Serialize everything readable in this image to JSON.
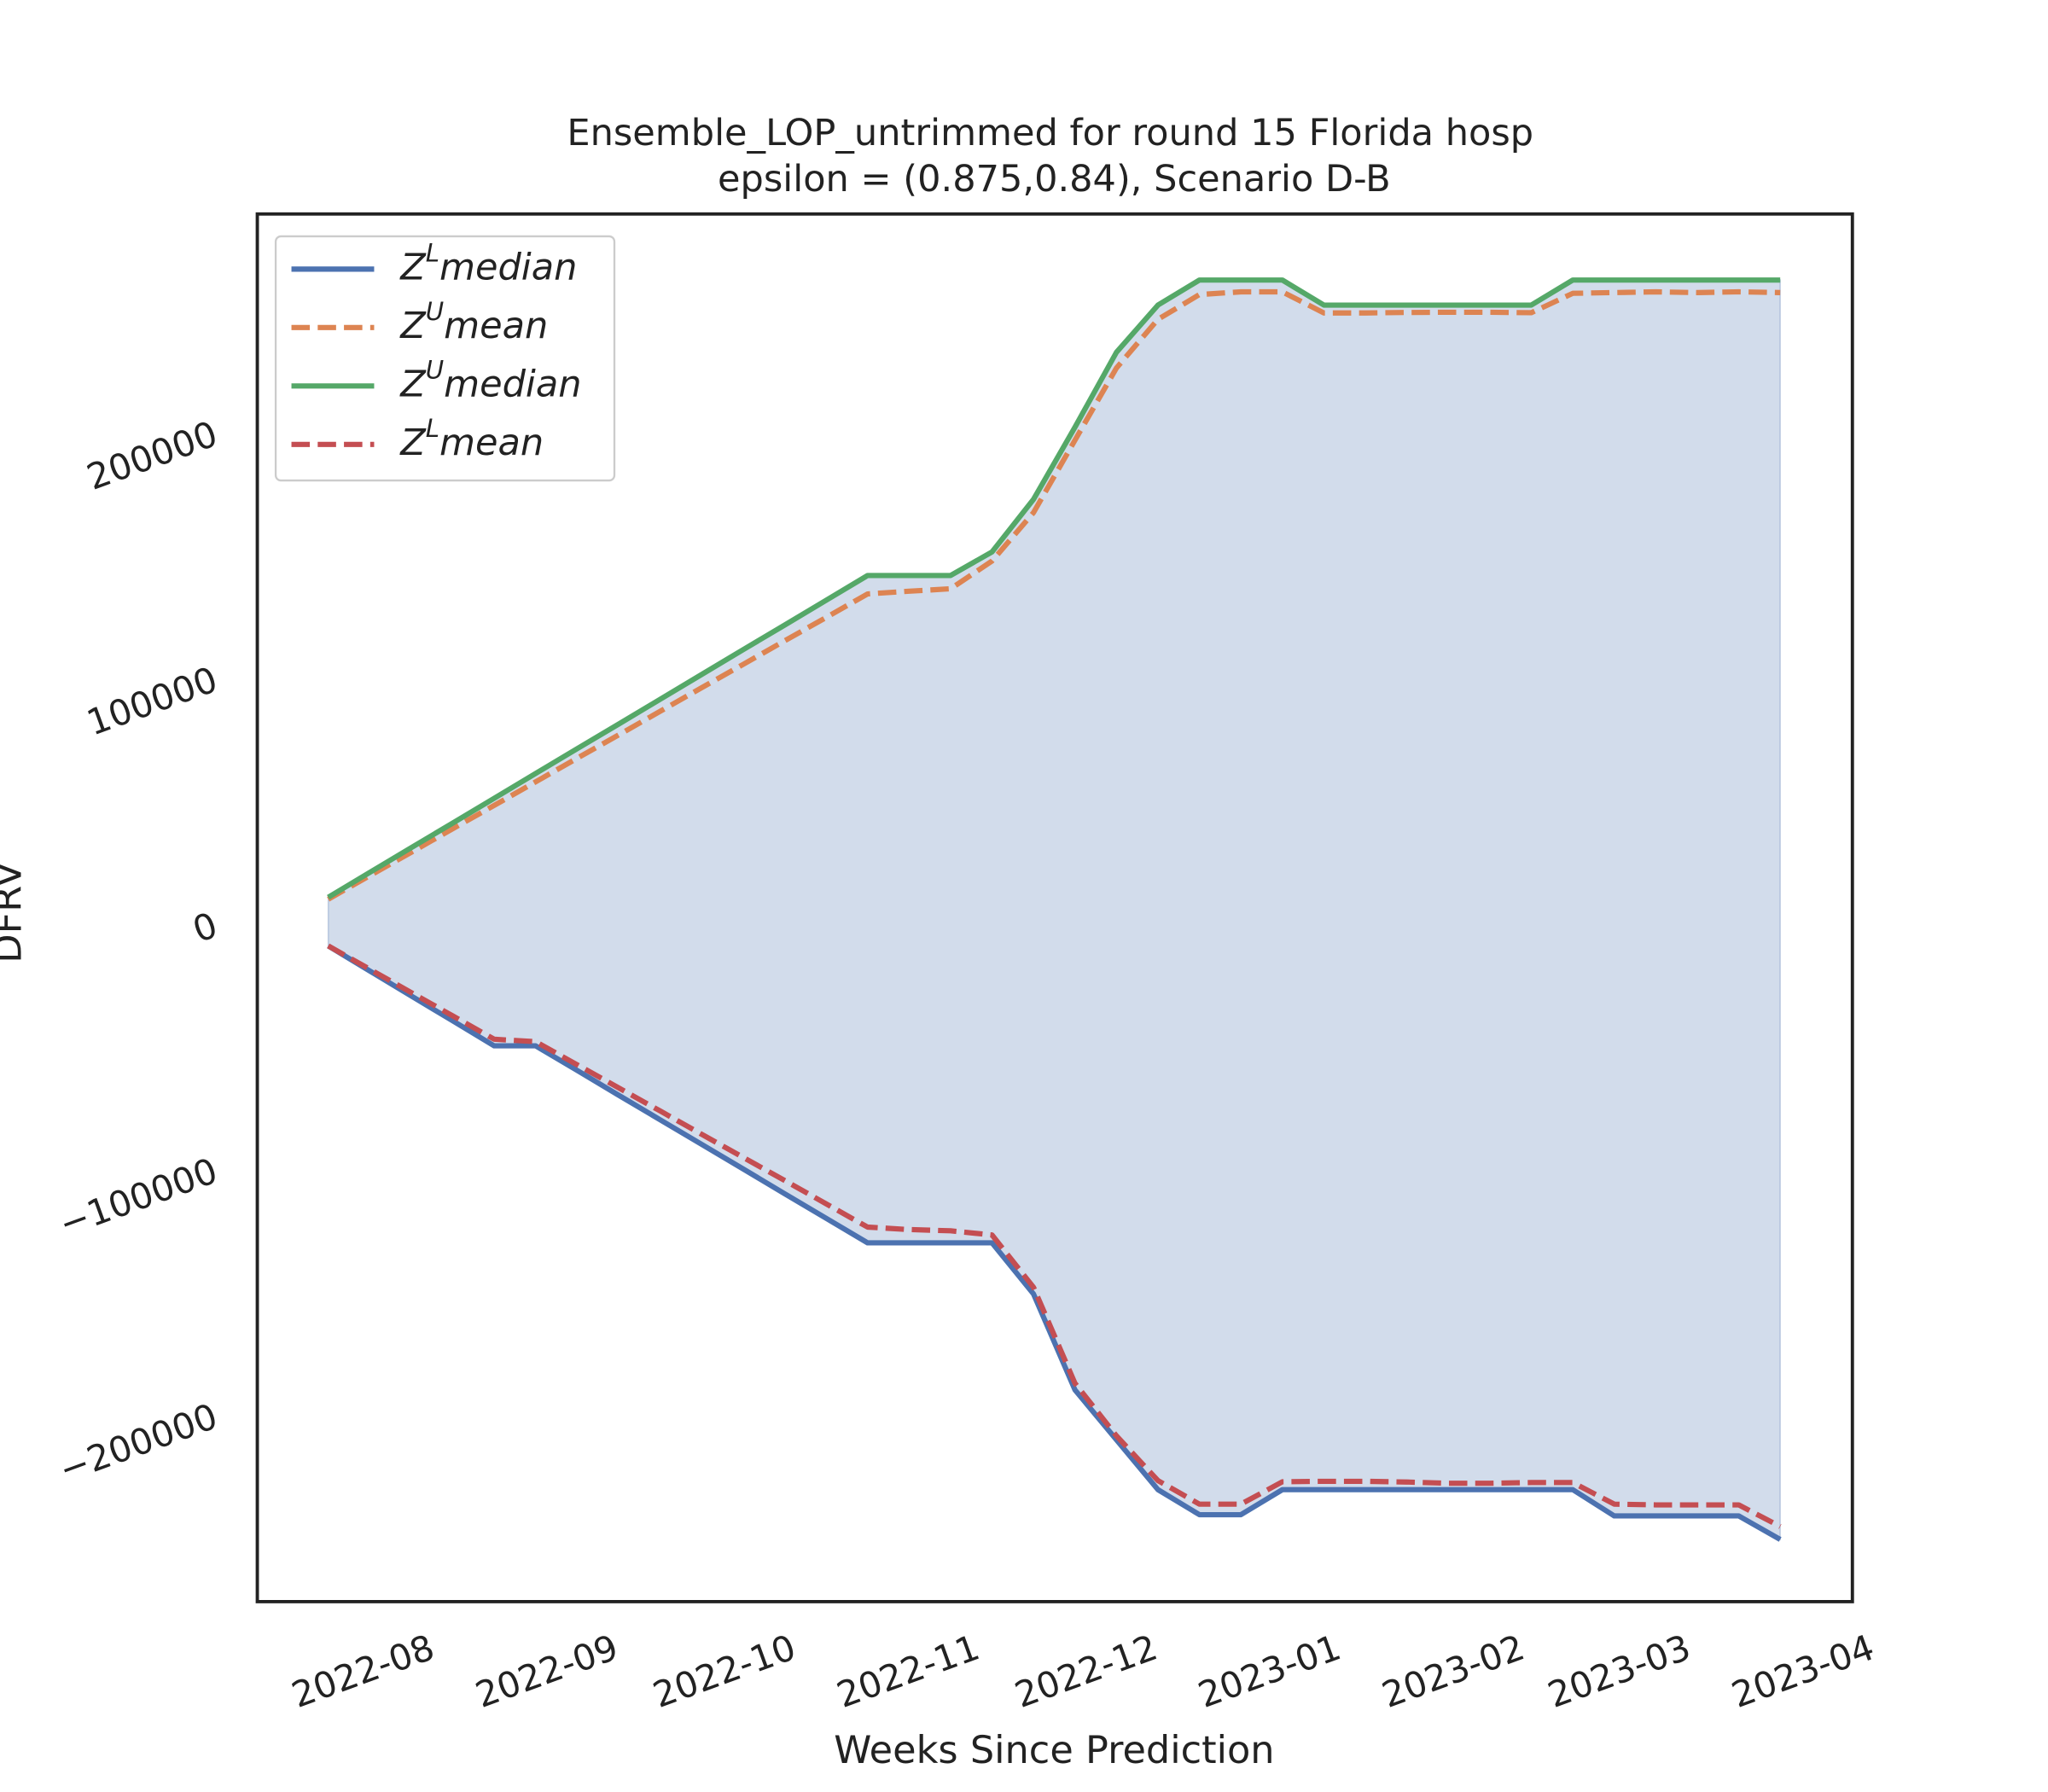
{
  "chart_data": {
    "type": "line",
    "title": "Ensemble_LOP_untrimmed for round 15 Florida  hosp",
    "subtitle": "epsilon = (0.875,0.84), Scenario D-B",
    "x_label": "Weeks Since Prediction",
    "y_label": "DFRV",
    "x": [
      0,
      1,
      2,
      3,
      4,
      5,
      6,
      7,
      8,
      9,
      10,
      11,
      12,
      13,
      14,
      15,
      16,
      17,
      18,
      19,
      20,
      21,
      22,
      23,
      24,
      25,
      26,
      27,
      28,
      29,
      30,
      31,
      32,
      33,
      34,
      35
    ],
    "xlim": [
      -1.71,
      36.74
    ],
    "xticks": [
      {
        "value": 0.86,
        "label": "2022-08"
      },
      {
        "value": 5.29,
        "label": "2022-09"
      },
      {
        "value": 9.57,
        "label": "2022-10"
      },
      {
        "value": 14.0,
        "label": "2022-11"
      },
      {
        "value": 18.29,
        "label": "2022-12"
      },
      {
        "value": 22.71,
        "label": "2023-01"
      },
      {
        "value": 27.14,
        "label": "2023-02"
      },
      {
        "value": 31.14,
        "label": "2023-03"
      },
      {
        "value": 35.57,
        "label": "2023-04"
      }
    ],
    "ylim": [
      -275000,
      290000
    ],
    "yticks": [
      200000,
      100000,
      0,
      {
        "value": -100000,
        "label": "−100000"
      },
      {
        "value": -200000,
        "label": "−200000"
      }
    ],
    "grid": false,
    "legend": "upper left",
    "fill_color": "#4c72b0",
    "series": [
      {
        "name": "ZLmedian",
        "color": "#4c72b0",
        "dash": false,
        "values": [
          -8000,
          -18200,
          -28400,
          -38500,
          -48700,
          -48700,
          -58700,
          -68800,
          -78800,
          -88800,
          -98800,
          -108900,
          -118900,
          -128900,
          -128900,
          -128900,
          -128900,
          -149700,
          -188800,
          -209100,
          -229400,
          -239600,
          -239600,
          -229400,
          -229400,
          -229400,
          -229400,
          -229400,
          -229400,
          -229400,
          -229400,
          -240100,
          -240100,
          -240100,
          -240100,
          -249700
        ]
      },
      {
        "name": "ZUmean",
        "color": "#dd8452",
        "dash": true,
        "values": [
          11000,
          20600,
          30100,
          39700,
          49200,
          58800,
          68400,
          77900,
          87500,
          97100,
          106600,
          116200,
          125700,
          135300,
          136400,
          137400,
          148700,
          168400,
          197900,
          227300,
          247100,
          257200,
          258300,
          258300,
          249700,
          249700,
          249900,
          250000,
          250000,
          249800,
          257700,
          258000,
          258300,
          258000,
          258300,
          258000
        ]
      },
      {
        "name": "ZUmedian",
        "color": "#55a868",
        "dash": false,
        "values": [
          11800,
          21900,
          32000,
          42000,
          52100,
          62200,
          72300,
          82300,
          92400,
          102500,
          112600,
          122600,
          132700,
          142800,
          142800,
          142800,
          152400,
          173800,
          203200,
          233700,
          252900,
          263100,
          263100,
          263100,
          252900,
          252900,
          252900,
          252900,
          252900,
          252900,
          263100,
          263100,
          263100,
          263100,
          263100,
          263100
        ]
      },
      {
        "name": "ZLmean",
        "color": "#c44e52",
        "dash": true,
        "values": [
          -8000,
          -17500,
          -27000,
          -36500,
          -46000,
          -47000,
          -56400,
          -65800,
          -75200,
          -84700,
          -94100,
          -103500,
          -113000,
          -122500,
          -123500,
          -124000,
          -125700,
          -147000,
          -186100,
          -207500,
          -225700,
          -235300,
          -235300,
          -226200,
          -226000,
          -226000,
          -226300,
          -226800,
          -226800,
          -226500,
          -226500,
          -235300,
          -235600,
          -235600,
          -235600,
          -244400
        ]
      }
    ]
  }
}
